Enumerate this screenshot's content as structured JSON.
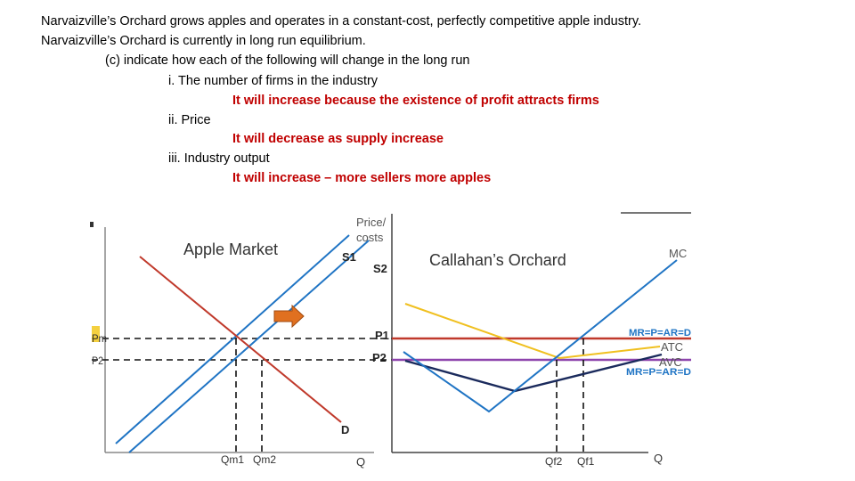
{
  "text": {
    "line1": "Narvaizville’s Orchard grows apples and operates in a constant-cost, perfectly competitive apple industry.",
    "line2": "Narvaizville’s Orchard is currently in long run equilibrium.",
    "part_c": "(c)  indicate how each of the following will change in the long run",
    "q1": "i.  The number of firms in the industry",
    "a1": "It will increase because the existence of profit attracts firms",
    "q2": "ii.  Price",
    "a2": "It will decrease as supply increase",
    "q3": "iii.  Industry output",
    "a3": "It will increase – more sellers more apples"
  },
  "market": {
    "title": "Apple Market",
    "y_axis_label_1": "Price/",
    "y_axis_label_2": "costs",
    "x_axis_label": "Q",
    "s1": "S1",
    "s2": "S2",
    "demand": "D",
    "p1": "P1",
    "p2": "P2",
    "pm": "Pm",
    "p2_left": "P2",
    "qm1": "Qm1",
    "qm2": "Qm2"
  },
  "firm": {
    "title": "Callahan’s Orchard",
    "mc": "MC",
    "atc": "ATC",
    "avc": "AVC",
    "mr1": "MR=P=AR=D",
    "mr2": "MR=P=AR=D",
    "x_axis_label": "Q",
    "qf2": "Qf2",
    "qf1": "Qf1"
  },
  "colors": {
    "answer_text": "#c00000",
    "supply": "#1f74c4",
    "demand": "#c0392b",
    "mr_line_p1": "#c0392b",
    "mr_line_p2": "#8e44ad",
    "atc": "#f0c020",
    "avc": "#1a2a5c",
    "mc": "#1f74c4",
    "arrow": "#e07020",
    "mr_label": "#1f74c4"
  }
}
